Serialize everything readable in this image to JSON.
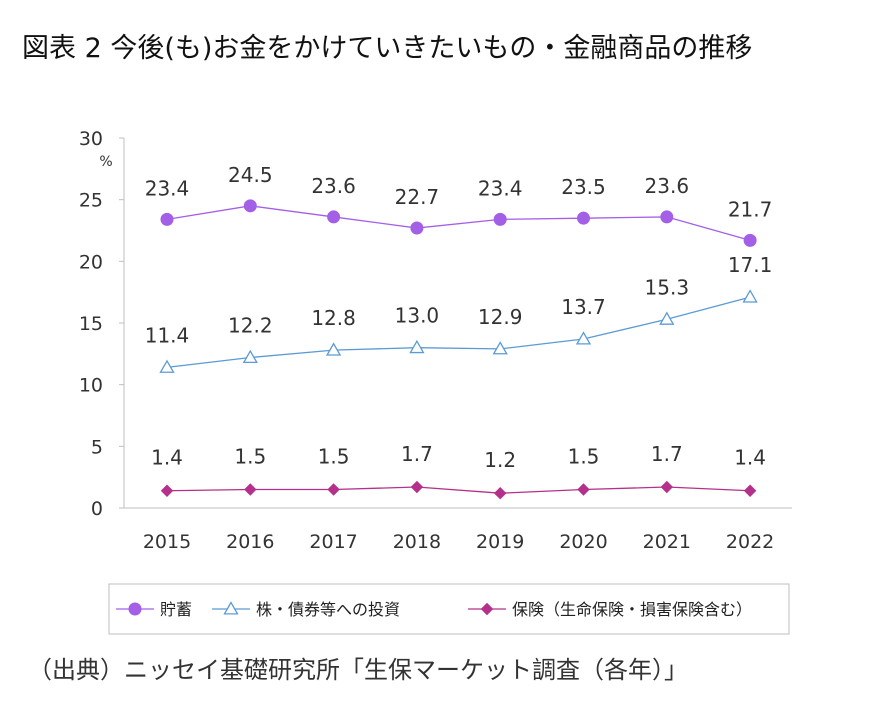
{
  "title": "図表 2 今後(も)お金をかけていきたいもの・金融商品の推移",
  "source": "（出典）ニッセイ基礎研究所「生保マーケット調査（各年）」",
  "chart_data": {
    "type": "line",
    "categories": [
      "2015",
      "2016",
      "2017",
      "2018",
      "2019",
      "2020",
      "2021",
      "2022"
    ],
    "y_unit": "%",
    "ylim": [
      0,
      30
    ],
    "yticks": [
      0,
      5,
      10,
      15,
      20,
      25,
      30
    ],
    "grid": false,
    "legend_position": "bottom",
    "series": [
      {
        "name": "貯蓄",
        "color": "#a35fe6",
        "marker": "circle",
        "values": [
          23.4,
          24.5,
          23.6,
          22.7,
          23.4,
          23.5,
          23.6,
          21.7
        ],
        "labels": [
          "23.4",
          "24.5",
          "23.6",
          "22.7",
          "23.4",
          "23.5",
          "23.6",
          "21.7"
        ]
      },
      {
        "name": "株・債券等への投資",
        "color": "#5b9bd5",
        "marker": "triangle-open",
        "values": [
          11.4,
          12.2,
          12.8,
          13.0,
          12.9,
          13.7,
          15.3,
          17.1
        ],
        "labels": [
          "11.4",
          "12.2",
          "12.8",
          "13.0",
          "12.9",
          "13.7",
          "15.3",
          "17.1"
        ]
      },
      {
        "name": "保険（生命保険・損害保険含む）",
        "color": "#b5308a",
        "marker": "diamond",
        "values": [
          1.4,
          1.5,
          1.5,
          1.7,
          1.2,
          1.5,
          1.7,
          1.4
        ],
        "labels": [
          "1.4",
          "1.5",
          "1.5",
          "1.7",
          "1.2",
          "1.5",
          "1.7",
          "1.4"
        ]
      }
    ]
  }
}
